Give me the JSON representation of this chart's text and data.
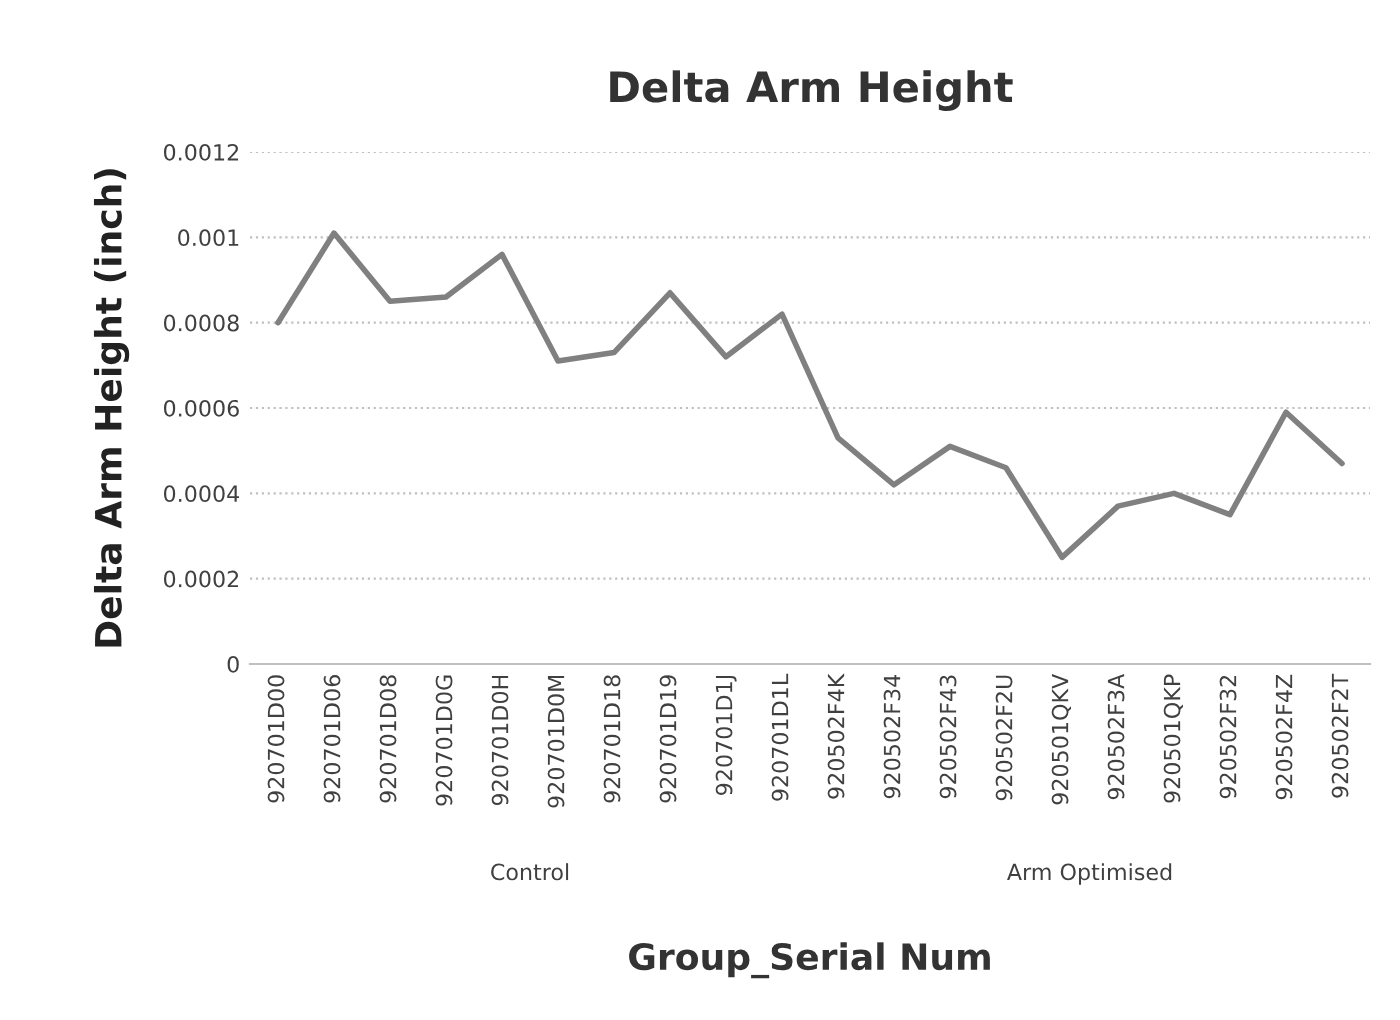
{
  "chart_data": {
    "type": "line",
    "title": "Delta Arm Height",
    "xlabel": "Group_Serial Num",
    "ylabel": "Delta Arm Height (inch)",
    "categories": [
      "920701D00",
      "920701D06",
      "920701D08",
      "920701D0G",
      "920701D0H",
      "920701D0M",
      "920701D18",
      "920701D19",
      "920701D1J",
      "920701D1L",
      "920502F4K",
      "920502F34",
      "920502F43",
      "920502F2U",
      "920501QKV",
      "920502F3A",
      "920501QKP",
      "920502F32",
      "920502F4Z",
      "920502F2T"
    ],
    "series": [
      {
        "color": "#808080",
        "values": [
          0.0008,
          0.00101,
          0.00085,
          0.00086,
          0.00096,
          0.00071,
          0.00073,
          0.00087,
          0.00072,
          0.00082,
          0.00053,
          0.00042,
          0.00051,
          0.00046,
          0.00025,
          0.00037,
          0.0004,
          0.00035,
          0.00059,
          0.00047
        ]
      }
    ],
    "ylim": [
      0,
      0.0012
    ],
    "yticks": [
      0,
      0.0002,
      0.0004,
      0.0006,
      0.0008,
      0.001,
      0.0012
    ],
    "grid": "y",
    "marker": "none",
    "line_style": "solid",
    "annotations": [
      "Control",
      "Arm Optimised"
    ]
  }
}
